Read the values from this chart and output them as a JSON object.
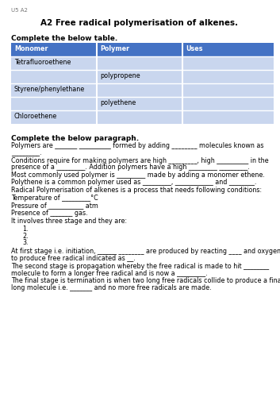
{
  "header_label": "U5 A2",
  "title": "A2 Free radical polymerisation of alkenes.",
  "section1_heading": "Complete the below table.",
  "table_headers": [
    "Monomer",
    "Polymer",
    "Uses"
  ],
  "table_rows": [
    [
      "Tetrafluoroethene",
      "",
      ""
    ],
    [
      "",
      "polypropene",
      ""
    ],
    [
      "Styrene/phenylethane",
      "",
      ""
    ],
    [
      "",
      "polyethene",
      ""
    ],
    [
      "Chloroethene",
      "",
      ""
    ]
  ],
  "header_bg": "#4472C4",
  "row_bg_light": "#C9D6EE",
  "header_text_color": "#FFFFFF",
  "section2_heading": "Complete the below paragraph.",
  "para1": "Polymers are _______ __________ formed by adding ________ molecules known as",
  "para1b": "_________.",
  "para2": "Conditions require for making polymers are high _________, high __________ in the",
  "para2b": "presence of a _________. Addition polymers have a high _________ _________.",
  "para3": "Most commonly used polymer is _________ made by adding a monomer ethene.",
  "para3b": "Polythene is a common polymer used as _________, ____________ and ________.",
  "para4": "Radical Polymerisation of alkenes is a process that needs following conditions:",
  "para5": "Temperature of _________°C",
  "para6": "Pressure of ___________ atm",
  "para7": "Presence of _______ gas.",
  "para8": "It involves three stage and they are:",
  "list_items": [
    "1.",
    "2.",
    "3."
  ],
  "para9": "At first stage i.e. initiation, ______ ________ are produced by reacting ____ and oxygen",
  "para9b": "to produce free radical indicated as __.",
  "para10": "The second stage is propagation whereby the free radical is made to hit ________",
  "para10b": "molecule to form a longer free radical and is now a _________.",
  "para11": "The final stage is termination is when two long free radicals collide to produce a final",
  "para11b": "long molecule i.e. _______ and no more free radicals are made.",
  "bg_color": "#FFFFFF",
  "text_color": "#000000",
  "body_fontsize": 5.8,
  "heading_fontsize": 6.5,
  "title_fontsize": 7.5,
  "header_label_fontsize": 5.0
}
